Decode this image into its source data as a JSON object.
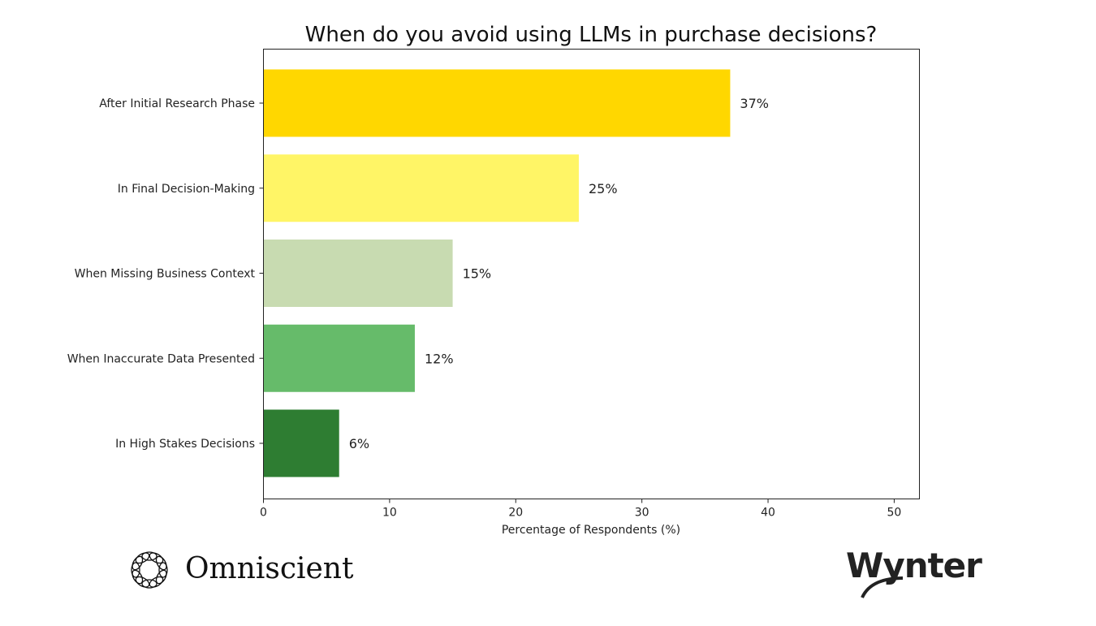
{
  "chart_data": {
    "type": "bar",
    "orientation": "horizontal",
    "title": "When do you avoid using LLMs in purchase decisions?",
    "xlabel": "Percentage of Respondents (%)",
    "ylabel": "",
    "categories": [
      "After Initial Research Phase",
      "In Final Decision-Making",
      "When Missing Business Context",
      "When Inaccurate Data Presented",
      "In High Stakes Decisions"
    ],
    "values": [
      37,
      25,
      15,
      12,
      6
    ],
    "data_labels": [
      "37%",
      "25%",
      "15%",
      "12%",
      "6%"
    ],
    "colors": [
      "#FFD700",
      "#FFF566",
      "#C8DBB1",
      "#66BB6A",
      "#2E7D32"
    ],
    "xlim": [
      0,
      52
    ],
    "xticks": [
      0,
      10,
      20,
      30,
      40,
      50
    ],
    "grid": false
  },
  "logos": {
    "left": "Omniscient",
    "right": "Wynter"
  }
}
